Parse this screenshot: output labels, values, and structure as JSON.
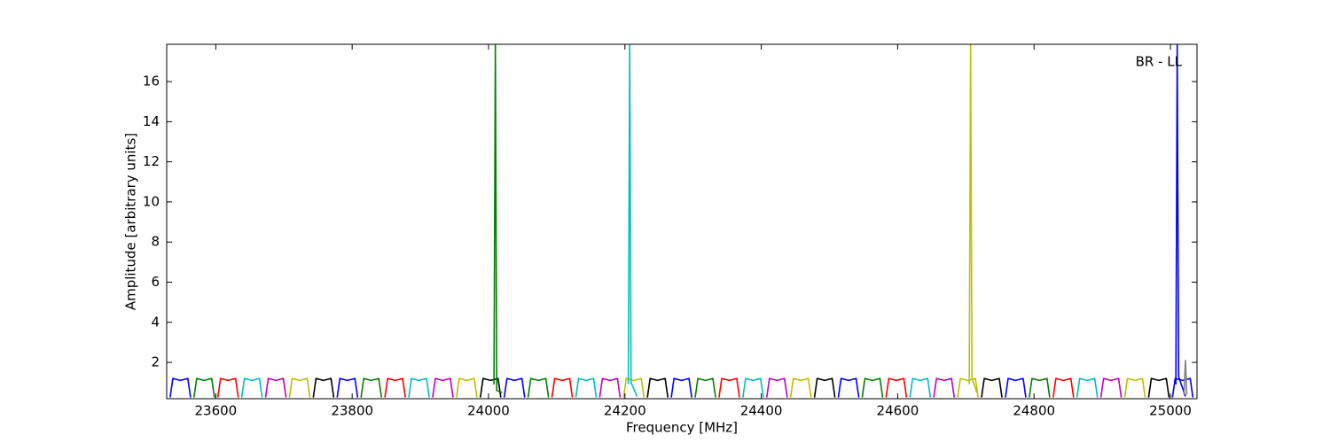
{
  "chart_data": {
    "type": "line",
    "xlabel": "Frequency [MHz]",
    "ylabel": "Amplitude [arbitrary units]",
    "annotation": "BR - LL",
    "xlim": [
      23528,
      25039
    ],
    "ylim": [
      0.19,
      17.86
    ],
    "xticks": [
      23600,
      23800,
      24000,
      24200,
      24400,
      24600,
      24800,
      25000
    ],
    "yticks": [
      2,
      4,
      6,
      8,
      10,
      12,
      14,
      16
    ],
    "grid": false,
    "series": [
      {
        "color": "#0000ff",
        "x": [
          23533,
          23537,
          23548,
          23559,
          23563,
          null,
          23778,
          23782,
          23793,
          23804,
          23808,
          null,
          24023,
          24027,
          24038,
          24049,
          24053,
          null,
          24268,
          24272,
          24283,
          24294,
          24298,
          null,
          24513,
          24517,
          24528,
          24539,
          24543,
          null,
          24758,
          24762,
          24773,
          24784,
          24788,
          null,
          25003,
          25007,
          25018,
          25029,
          25033
        ],
        "values": [
          0.25,
          1.2,
          1.1,
          1.2,
          0.25,
          null,
          0.25,
          1.2,
          1.1,
          1.2,
          0.25,
          null,
          0.25,
          1.2,
          1.1,
          1.2,
          0.25,
          null,
          0.25,
          1.2,
          1.1,
          1.2,
          0.25,
          null,
          0.25,
          1.2,
          1.1,
          1.2,
          0.25,
          null,
          0.25,
          1.2,
          1.1,
          1.2,
          0.25,
          null,
          0.25,
          1.2,
          1.1,
          1.2,
          0.25
        ]
      },
      {
        "color": "#008000",
        "x": [
          23568,
          23572,
          23583,
          23594,
          23598,
          null,
          23813,
          23817,
          23828,
          23839,
          23843,
          null,
          24058,
          24062,
          24073,
          24084,
          24088,
          null,
          24303,
          24307,
          24318,
          24329,
          24333,
          null,
          24548,
          24552,
          24563,
          24574,
          24578,
          null,
          24793,
          24797,
          24808,
          24819,
          24823
        ],
        "values": [
          0.25,
          1.2,
          1.1,
          1.2,
          0.25,
          null,
          0.25,
          1.2,
          1.1,
          1.2,
          0.25,
          null,
          0.25,
          1.2,
          1.1,
          1.2,
          0.25,
          null,
          0.25,
          1.2,
          1.1,
          1.2,
          0.25,
          null,
          0.25,
          1.2,
          1.1,
          1.2,
          0.25,
          null,
          0.25,
          1.2,
          1.1,
          1.2,
          0.25
        ]
      },
      {
        "color": "#ff0000",
        "x": [
          23603,
          23607,
          23618,
          23629,
          23633,
          null,
          23848,
          23852,
          23863,
          23874,
          23878,
          null,
          24093,
          24097,
          24108,
          24119,
          24123,
          null,
          24338,
          24342,
          24353,
          24364,
          24368,
          null,
          24583,
          24587,
          24598,
          24609,
          24613,
          null,
          24828,
          24832,
          24843,
          24854,
          24858
        ],
        "values": [
          0.25,
          1.2,
          1.1,
          1.2,
          0.25,
          null,
          0.25,
          1.2,
          1.1,
          1.2,
          0.25,
          null,
          0.25,
          1.2,
          1.1,
          1.2,
          0.25,
          null,
          0.25,
          1.2,
          1.1,
          1.2,
          0.25,
          null,
          0.25,
          1.2,
          1.1,
          1.2,
          0.25,
          null,
          0.25,
          1.2,
          1.1,
          1.2,
          0.25
        ]
      },
      {
        "color": "#00bfbf",
        "x": [
          23638,
          23642,
          23653,
          23664,
          23668,
          null,
          23883,
          23887,
          23898,
          23909,
          23913,
          null,
          24128,
          24132,
          24143,
          24154,
          24158,
          null,
          24373,
          24377,
          24388,
          24399,
          24403,
          null,
          24618,
          24622,
          24633,
          24644,
          24648,
          null,
          24863,
          24867,
          24878,
          24889,
          24893
        ],
        "values": [
          0.25,
          1.2,
          1.1,
          1.2,
          0.25,
          null,
          0.25,
          1.2,
          1.1,
          1.2,
          0.25,
          null,
          0.25,
          1.2,
          1.1,
          1.2,
          0.25,
          null,
          0.25,
          1.2,
          1.1,
          1.2,
          0.25,
          null,
          0.25,
          1.2,
          1.1,
          1.2,
          0.25,
          null,
          0.25,
          1.2,
          1.1,
          1.2,
          0.25
        ]
      },
      {
        "color": "#bf00bf",
        "x": [
          23673,
          23677,
          23688,
          23699,
          23703,
          null,
          23918,
          23922,
          23933,
          23944,
          23948,
          null,
          24163,
          24167,
          24178,
          24189,
          24193,
          null,
          24408,
          24412,
          24423,
          24434,
          24438,
          null,
          24653,
          24657,
          24668,
          24679,
          24683,
          null,
          24898,
          24902,
          24913,
          24924,
          24928
        ],
        "values": [
          0.25,
          1.2,
          1.1,
          1.2,
          0.25,
          null,
          0.25,
          1.2,
          1.1,
          1.2,
          0.25,
          null,
          0.25,
          1.2,
          1.1,
          1.2,
          0.25,
          null,
          0.25,
          1.2,
          1.1,
          1.2,
          0.25,
          null,
          0.25,
          1.2,
          1.1,
          1.2,
          0.25,
          null,
          0.25,
          1.2,
          1.1,
          1.2,
          0.25
        ]
      },
      {
        "color": "#bfbf00",
        "x": [
          23708,
          23712,
          23723,
          23734,
          23738,
          null,
          23953,
          23957,
          23968,
          23979,
          23983,
          null,
          24198,
          24202,
          24213,
          24224,
          24228,
          null,
          24443,
          24447,
          24458,
          24469,
          24473,
          null,
          24688,
          24692,
          24703,
          24714,
          24718,
          null,
          24933,
          24937,
          24948,
          24959,
          24963
        ],
        "values": [
          0.25,
          1.2,
          1.1,
          1.2,
          0.25,
          null,
          0.25,
          1.2,
          1.1,
          1.2,
          0.25,
          null,
          0.25,
          1.2,
          1.1,
          1.2,
          0.25,
          null,
          0.25,
          1.2,
          1.1,
          1.2,
          0.25,
          null,
          0.25,
          1.2,
          1.1,
          1.2,
          0.25,
          null,
          0.25,
          1.2,
          1.1,
          1.2,
          0.25
        ]
      },
      {
        "color": "#000000",
        "x": [
          23743,
          23747,
          23758,
          23769,
          23773,
          null,
          23988,
          23992,
          24003,
          24014,
          24018,
          null,
          24233,
          24237,
          24248,
          24259,
          24263,
          null,
          24478,
          24482,
          24493,
          24504,
          24508,
          null,
          24723,
          24727,
          24738,
          24749,
          24753,
          null,
          24968,
          24972,
          24983,
          24994,
          24998
        ],
        "values": [
          0.25,
          1.2,
          1.1,
          1.2,
          0.25,
          null,
          0.25,
          1.2,
          1.1,
          1.2,
          0.25,
          null,
          0.25,
          1.2,
          1.1,
          1.2,
          0.25,
          null,
          0.25,
          1.2,
          1.1,
          1.2,
          0.25,
          null,
          0.25,
          1.2,
          1.1,
          1.2,
          0.25,
          null,
          0.25,
          1.2,
          1.1,
          1.2,
          0.25
        ]
      },
      {
        "color": "#008000",
        "x": [
          24008,
          24010,
          24012,
          24020
        ],
        "values": [
          0.9,
          17.86,
          0.6,
          0.5
        ]
      },
      {
        "color": "#00bfbf",
        "x": [
          24205,
          24207,
          24209,
          24218
        ],
        "values": [
          0.9,
          17.86,
          1.0,
          0.3
        ]
      },
      {
        "color": "#bfbf00",
        "x": [
          24705,
          24707,
          24709,
          24716
        ],
        "values": [
          0.9,
          17.86,
          1.2,
          0.5
        ]
      },
      {
        "color": "#0000ff",
        "x": [
          25008,
          25010,
          25012,
          25022
        ],
        "values": [
          0.9,
          17.86,
          1.3,
          0.3
        ]
      },
      {
        "color": "#808080",
        "x": [
          25020,
          25022,
          25024
        ],
        "values": [
          0.4,
          2.1,
          0.4
        ]
      }
    ]
  }
}
